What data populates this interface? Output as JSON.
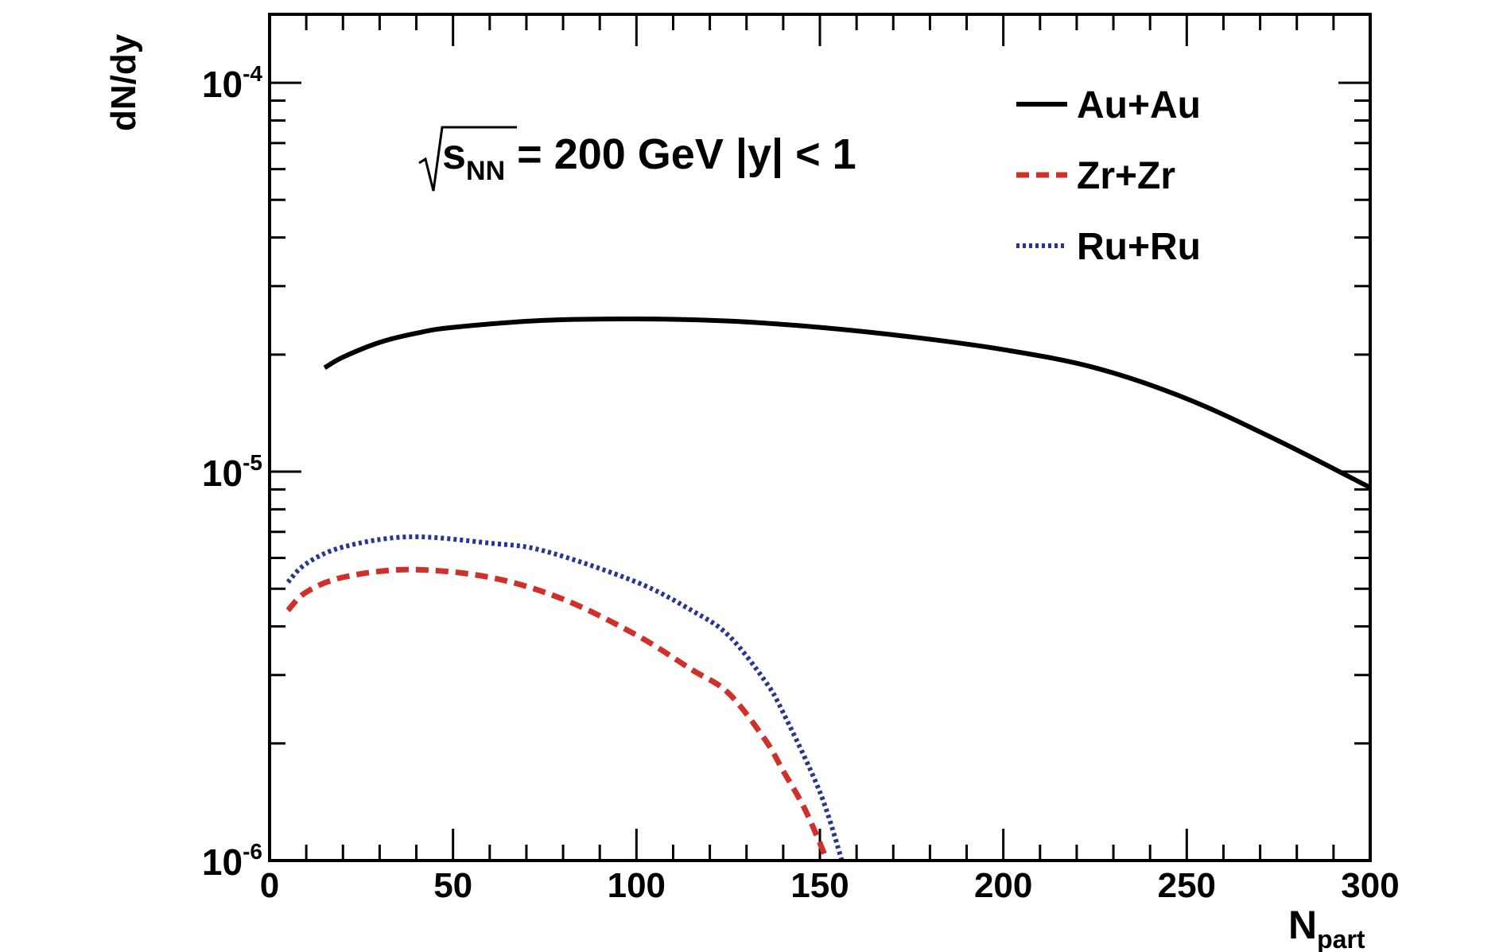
{
  "chart_data": {
    "type": "line",
    "title": "",
    "annotation": {
      "sqrt": "s",
      "sub": "NN",
      "rest": " = 200 GeV |y| < 1"
    },
    "xlabel": {
      "main": "N",
      "sub": "part"
    },
    "ylabel": "dN/dy",
    "xlim": [
      0,
      300
    ],
    "ylim": [
      1e-06,
      0.00015
    ],
    "yscale": "log",
    "grid": false,
    "legend_position": "top-right",
    "x_ticks": [
      "0",
      "50",
      "100",
      "150",
      "200",
      "250",
      "300"
    ],
    "y_ticks": [
      {
        "base": "10",
        "exp": "-4"
      },
      {
        "base": "10",
        "exp": "-5"
      },
      {
        "base": "10",
        "exp": "-6"
      }
    ],
    "series": [
      {
        "name": "Au+Au",
        "color": "#000000",
        "style": "solid",
        "x": [
          15,
          20,
          30,
          40,
          50,
          75,
          100,
          125,
          150,
          175,
          200,
          225,
          250,
          275,
          300
        ],
        "y": [
          1.85e-05,
          1.97e-05,
          2.15e-05,
          2.27e-05,
          2.35e-05,
          2.45e-05,
          2.47e-05,
          2.44e-05,
          2.35e-05,
          2.22e-05,
          2.06e-05,
          1.85e-05,
          1.54e-05,
          1.2e-05,
          9.1e-06
        ]
      },
      {
        "name": "Zr+Zr",
        "color": "#d0302a",
        "style": "dashed",
        "x": [
          5,
          10,
          20,
          38,
          60,
          80,
          100,
          115,
          125,
          135,
          140,
          146,
          152
        ],
        "y": [
          4.4e-06,
          4.9e-06,
          5.35e-06,
          5.6e-06,
          5.35e-06,
          4.7e-06,
          3.8e-06,
          3.1e-06,
          2.7e-06,
          2.05e-06,
          1.7e-06,
          1.35e-06,
          1e-06
        ]
      },
      {
        "name": "Ru+Ru",
        "color": "#2a3590",
        "style": "dotted",
        "x": [
          5,
          10,
          20,
          38,
          60,
          75,
          100,
          115,
          125,
          135,
          140,
          150,
          156
        ],
        "y": [
          5.2e-06,
          5.8e-06,
          6.4e-06,
          6.8e-06,
          6.55e-06,
          6.25e-06,
          5.2e-06,
          4.4e-06,
          3.8e-06,
          2.9e-06,
          2.4e-06,
          1.5e-06,
          1e-06
        ]
      }
    ]
  }
}
